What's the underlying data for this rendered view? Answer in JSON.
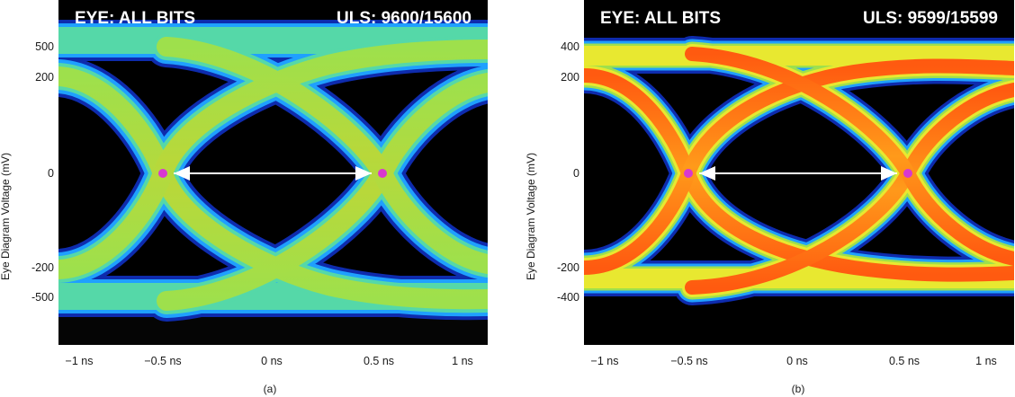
{
  "chart_data": [
    {
      "type": "eye-diagram",
      "id": "a",
      "title_left": "EYE: ALL BITS",
      "title_right": "ULS: 9600/15600",
      "ylabel": "Eye Diagram Voltage (mV)",
      "yticks": [
        500,
        200,
        0,
        -200,
        -500
      ],
      "xticks": [
        "−1 ns",
        "−0.5 ns",
        "0 ns",
        "0.5 ns",
        "1 ns"
      ],
      "caption": "(a)",
      "crossings_ns": [
        -0.5,
        0.5
      ],
      "color_scale": [
        "#1030c0",
        "#1fa0ff",
        "#55d8a8",
        "#9ee04c",
        "#b8d83a",
        "#e8e830",
        "#ff9a1a",
        "#ff5a10"
      ],
      "crossing_marker_color": "#d838d0",
      "arrow_color": "#ffffff"
    },
    {
      "type": "eye-diagram",
      "id": "b",
      "title_left": "EYE: ALL BITS",
      "title_right": "ULS: 9599/15599",
      "ylabel": "Eye Diagram Voltage (mV)",
      "yticks": [
        400,
        200,
        0,
        -200,
        -400
      ],
      "xticks": [
        "−1 ns",
        "−0.5 ns",
        "0 ns",
        "0.5 ns",
        "1 ns"
      ],
      "caption": "(b)",
      "crossings_ns": [
        -0.5,
        0.5
      ],
      "color_scale": [
        "#1030c0",
        "#1fa0ff",
        "#55d8a8",
        "#9ee04c",
        "#b8d83a",
        "#e8e830",
        "#ff9a1a",
        "#ff5a10"
      ],
      "crossing_marker_color": "#d838d0",
      "arrow_color": "#ffffff"
    }
  ]
}
